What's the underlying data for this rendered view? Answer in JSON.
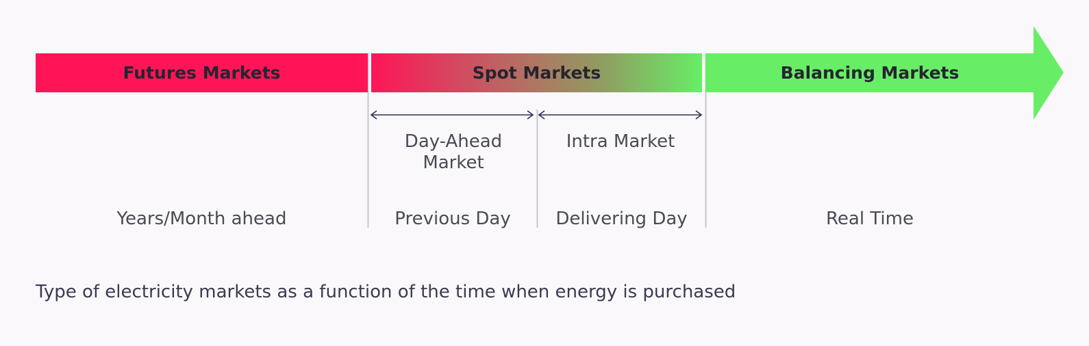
{
  "segments": {
    "futures": "Futures Markets",
    "spot": "Spot Markets",
    "balancing": "Balancing Markets"
  },
  "spot_submarkets": {
    "day_ahead": "Day-Ahead Market",
    "intra": "Intra Market"
  },
  "timing": {
    "futures": "Years/Month ahead",
    "day_ahead": "Previous Day",
    "intra": "Delivering Day",
    "balancing": "Real Time"
  },
  "caption": "Type of electricity markets as a function of the time when energy is purchased",
  "colors": {
    "futures": "#ff1557",
    "balancing": "#68ee66",
    "arrow_line": "#2f2d55",
    "divider": "#c8c6cc"
  }
}
